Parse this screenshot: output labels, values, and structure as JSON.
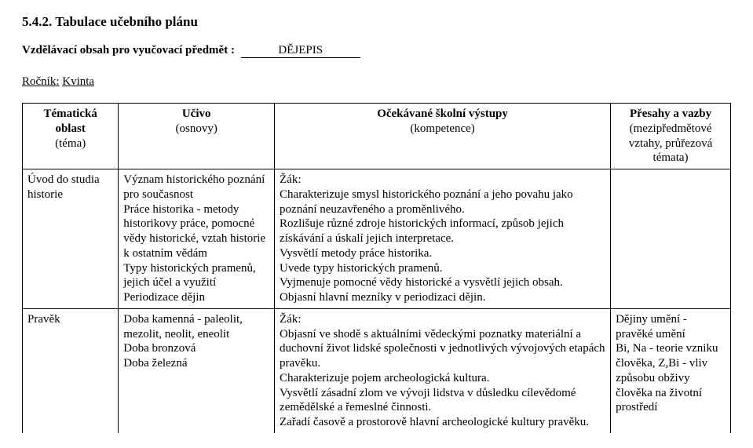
{
  "heading": "5.4.2. Tabulace učebního plánu",
  "intro_label": "Vzdělávací obsah pro vyučovací předmět :",
  "subject": "DĚJEPIS",
  "rocnik_label": "Ročník:",
  "rocnik_value": "Kvinta",
  "table": {
    "headers": {
      "tema_bold": "Tématická oblast",
      "tema_sub": "(téma)",
      "ucivo_bold": "Učivo",
      "ucivo_sub": "(osnovy)",
      "vystup_bold": "Očekávané školní výstupy",
      "vystup_sub": "(kompetence)",
      "presah_bold": "Přesahy a vazby",
      "presah_sub": "(mezipředmětové vztahy, průřezová témata)"
    },
    "rows": [
      {
        "tema": "Úvod do studia historie",
        "ucivo": "Význam historického poznání pro současnost\nPráce historika - metody historikovy práce, pomocné vědy historické, vztah historie k ostatním vědám\nTypy historických pramenů, jejich účel a využití\nPeriodizace dějin",
        "vystup": "Žák:\nCharakterizuje smysl historického poznání a jeho povahu jako poznání neuzavřeného a proměnlivého.\nRozlišuje různé zdroje historických informací, způsob jejich získávání a úskalí jejich interpretace.\nVysvětlí metody práce historika.\nUvede typy historických pramenů.\nVyjmenuje pomocné vědy historické a vysvětlí jejich obsah.\nObjasní hlavní mezníky v periodizaci dějin.",
        "presah": ""
      },
      {
        "tema": "Pravěk",
        "ucivo": "Doba kamenná - paleolit, mezolit, neolit, eneolit\nDoba bronzová\nDoba železná",
        "vystup": "Žák:\nObjasní ve shodě s aktuálními vědeckými poznatky materiální a duchovní život lidské společnosti v jednotlivých vývojových etapách pravěku.\nCharakterizuje pojem archeologická kultura.\nVysvětlí zásadní zlom ve vývoji lidstva v důsledku cílevědomé zemědělské a řemeslné činnosti.\nZařadí časově a prostorově hlavní archeologické kultury pravěku.",
        "presah": "Dějiny umění - pravěké umění\nBi, Na - teorie vzniku člověka, Z,Bi - vliv způsobu obživy člověka na životní prostředí"
      }
    ]
  }
}
